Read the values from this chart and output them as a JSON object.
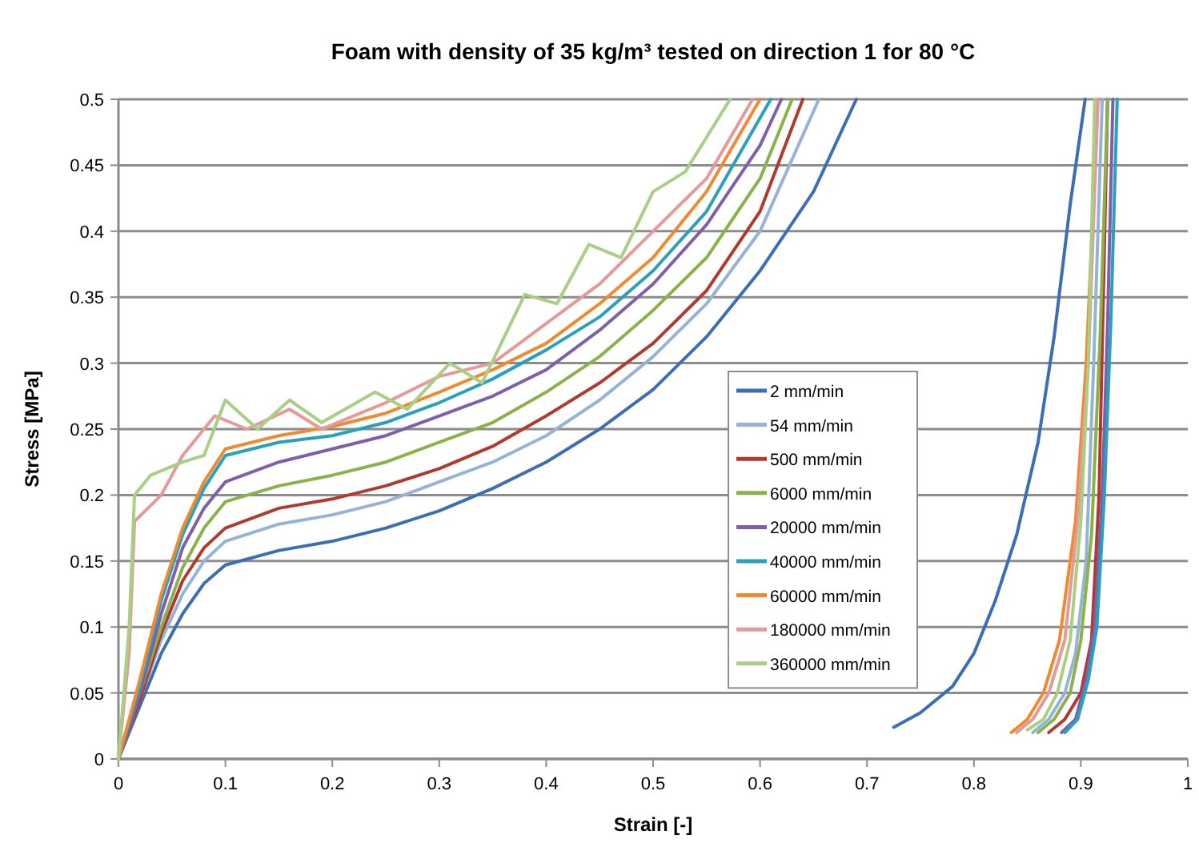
{
  "chart_data": {
    "type": "line",
    "title": "Foam with density of 35 kg/m³ tested on direction 1 for 80 °C",
    "xlabel": "Strain [-]",
    "ylabel": "Stress [MPa]",
    "xlim": [
      0,
      1
    ],
    "xticks": [
      0,
      0.1,
      0.2,
      0.3,
      0.4,
      0.5,
      0.6,
      0.7,
      0.8,
      0.9,
      1
    ],
    "ylim": [
      0,
      0.5
    ],
    "yticks": [
      0,
      0.05,
      0.1,
      0.15,
      0.2,
      0.25,
      0.3,
      0.35,
      0.4,
      0.45,
      0.5
    ],
    "grid": "y",
    "legend": "right",
    "marker": "none",
    "line_style": "solid",
    "series": [
      {
        "name": "2 mm/min",
        "color": "#3c6eb4",
        "x": [
          0,
          0.02,
          0.04,
          0.06,
          0.08,
          0.1,
          0.15,
          0.2,
          0.25,
          0.3,
          0.35,
          0.4,
          0.45,
          0.5,
          0.55,
          0.6,
          0.65,
          0.69,
          0.71,
          0.725,
          0.75,
          0.78,
          0.8,
          0.82,
          0.84,
          0.86,
          0.875,
          0.89,
          0.904
        ],
        "values": [
          0,
          0.04,
          0.08,
          0.11,
          0.133,
          0.147,
          0.158,
          0.165,
          0.175,
          0.188,
          0.205,
          0.225,
          0.25,
          0.28,
          0.32,
          0.37,
          0.43,
          0.5,
          null,
          0.024,
          0.035,
          0.055,
          0.08,
          0.12,
          0.17,
          0.24,
          0.32,
          0.42,
          0.5
        ]
      },
      {
        "name": "54 mm/min",
        "color": "#95b3d7",
        "x": [
          0,
          0.02,
          0.04,
          0.06,
          0.08,
          0.1,
          0.15,
          0.2,
          0.25,
          0.3,
          0.35,
          0.4,
          0.45,
          0.5,
          0.55,
          0.6,
          0.655,
          0.75,
          0.855,
          0.87,
          0.885,
          0.895,
          0.905,
          0.912,
          0.92
        ],
        "values": [
          0,
          0.045,
          0.09,
          0.125,
          0.15,
          0.165,
          0.178,
          0.185,
          0.195,
          0.21,
          0.225,
          0.245,
          0.272,
          0.305,
          0.345,
          0.4,
          0.5,
          null,
          0.02,
          0.03,
          0.05,
          0.08,
          0.15,
          0.3,
          0.5
        ]
      },
      {
        "name": "500 mm/min",
        "color": "#b03a2e",
        "x": [
          0,
          0.02,
          0.04,
          0.06,
          0.08,
          0.1,
          0.15,
          0.2,
          0.25,
          0.3,
          0.35,
          0.4,
          0.45,
          0.5,
          0.55,
          0.6,
          0.64,
          0.75,
          0.87,
          0.885,
          0.9,
          0.91,
          0.917,
          0.925
        ],
        "values": [
          0,
          0.045,
          0.095,
          0.135,
          0.16,
          0.175,
          0.19,
          0.197,
          0.207,
          0.22,
          0.237,
          0.26,
          0.285,
          0.315,
          0.355,
          0.415,
          0.5,
          null,
          0.02,
          0.03,
          0.05,
          0.09,
          0.2,
          0.5
        ]
      },
      {
        "name": "6000 mm/min",
        "color": "#8bb14a",
        "x": [
          0,
          0.02,
          0.04,
          0.06,
          0.08,
          0.1,
          0.15,
          0.2,
          0.25,
          0.3,
          0.35,
          0.4,
          0.45,
          0.5,
          0.55,
          0.6,
          0.63,
          0.75,
          0.86,
          0.875,
          0.89,
          0.9,
          0.91,
          0.918,
          0.925
        ],
        "values": [
          0,
          0.05,
          0.1,
          0.145,
          0.175,
          0.195,
          0.207,
          0.215,
          0.225,
          0.24,
          0.255,
          0.278,
          0.305,
          0.34,
          0.38,
          0.44,
          0.5,
          null,
          0.02,
          0.03,
          0.05,
          0.09,
          0.17,
          0.32,
          0.5
        ]
      },
      {
        "name": "20000 mm/min",
        "color": "#7f5fa8",
        "x": [
          0,
          0.02,
          0.04,
          0.06,
          0.08,
          0.1,
          0.15,
          0.2,
          0.25,
          0.3,
          0.35,
          0.4,
          0.45,
          0.5,
          0.55,
          0.6,
          0.62,
          0.75,
          0.882,
          0.895,
          0.905,
          0.913,
          0.92,
          0.925,
          0.93
        ],
        "values": [
          0,
          0.05,
          0.11,
          0.16,
          0.19,
          0.21,
          0.225,
          0.235,
          0.245,
          0.26,
          0.275,
          0.295,
          0.325,
          0.36,
          0.405,
          0.465,
          0.5,
          null,
          0.02,
          0.03,
          0.06,
          0.1,
          0.2,
          0.33,
          0.5
        ]
      },
      {
        "name": "40000 mm/min",
        "color": "#2aa0bf",
        "x": [
          0,
          0.02,
          0.04,
          0.06,
          0.08,
          0.1,
          0.15,
          0.2,
          0.25,
          0.3,
          0.35,
          0.4,
          0.45,
          0.5,
          0.55,
          0.61,
          0.75,
          0.885,
          0.897,
          0.907,
          0.915,
          0.922,
          0.928,
          0.934
        ],
        "values": [
          0,
          0.055,
          0.12,
          0.17,
          0.205,
          0.23,
          0.24,
          0.245,
          0.255,
          0.27,
          0.288,
          0.31,
          0.335,
          0.37,
          0.415,
          0.5,
          null,
          0.02,
          0.03,
          0.06,
          0.1,
          0.2,
          0.33,
          0.5
        ]
      },
      {
        "name": "60000 mm/min",
        "color": "#f08a30",
        "x": [
          0,
          0.02,
          0.04,
          0.06,
          0.08,
          0.1,
          0.15,
          0.2,
          0.25,
          0.3,
          0.35,
          0.4,
          0.45,
          0.5,
          0.55,
          0.6,
          0.75,
          0.835,
          0.85,
          0.865,
          0.88,
          0.895,
          0.905,
          0.916
        ],
        "values": [
          0,
          0.06,
          0.125,
          0.175,
          0.21,
          0.235,
          0.245,
          0.252,
          0.262,
          0.278,
          0.295,
          0.315,
          0.345,
          0.38,
          0.43,
          0.5,
          null,
          0.02,
          0.03,
          0.05,
          0.09,
          0.18,
          0.3,
          0.5
        ]
      },
      {
        "name": "180000 mm/min",
        "color": "#e39a98",
        "x": [
          0,
          0.01,
          0.015,
          0.04,
          0.06,
          0.09,
          0.12,
          0.16,
          0.19,
          0.25,
          0.3,
          0.35,
          0.4,
          0.45,
          0.5,
          0.55,
          0.593,
          0.75,
          0.84,
          0.855,
          0.87,
          0.885,
          0.897,
          0.907,
          0.916
        ],
        "values": [
          0,
          0.08,
          0.18,
          0.2,
          0.23,
          0.26,
          0.25,
          0.265,
          0.25,
          0.27,
          0.29,
          0.3,
          0.33,
          0.36,
          0.4,
          0.44,
          0.5,
          null,
          0.02,
          0.03,
          0.05,
          0.09,
          0.18,
          0.3,
          0.5
        ]
      },
      {
        "name": "360000 mm/min",
        "color": "#a9cf84",
        "x": [
          0,
          0.01,
          0.015,
          0.03,
          0.06,
          0.08,
          0.1,
          0.13,
          0.16,
          0.19,
          0.24,
          0.27,
          0.31,
          0.34,
          0.38,
          0.41,
          0.44,
          0.47,
          0.5,
          0.53,
          0.572,
          0.75,
          0.85,
          0.865,
          0.878,
          0.89,
          0.9,
          0.907,
          0.913
        ],
        "values": [
          0,
          0.1,
          0.2,
          0.215,
          0.225,
          0.23,
          0.272,
          0.25,
          0.272,
          0.255,
          0.278,
          0.265,
          0.3,
          0.285,
          0.352,
          0.345,
          0.39,
          0.38,
          0.43,
          0.445,
          0.5,
          null,
          0.022,
          0.03,
          0.05,
          0.09,
          0.18,
          0.3,
          0.5
        ]
      }
    ]
  }
}
